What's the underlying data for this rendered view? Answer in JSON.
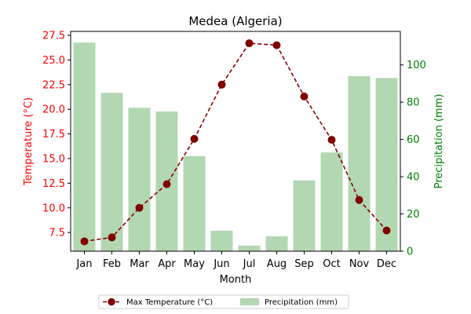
{
  "chart_data": {
    "type": "bar+line",
    "title": "Medea (Algeria)",
    "xlabel": "Month",
    "ylabel_left": "Temperature (°C)",
    "ylabel_right": "Precipitation (mm)",
    "categories": [
      "Jan",
      "Feb",
      "Mar",
      "Apr",
      "May",
      "Jun",
      "Jul",
      "Aug",
      "Sep",
      "Oct",
      "Nov",
      "Dec"
    ],
    "series": [
      {
        "name": "Max Temperature (°C)",
        "type": "line",
        "axis": "left",
        "values": [
          6.6,
          7.0,
          10.0,
          12.4,
          17.0,
          22.5,
          26.7,
          26.5,
          21.3,
          16.9,
          10.8,
          7.7
        ]
      },
      {
        "name": "Precipitation (mm)",
        "type": "bar",
        "axis": "right",
        "values": [
          112,
          85,
          77,
          75,
          51,
          11,
          3,
          8,
          38,
          53,
          94,
          93
        ]
      }
    ],
    "ylim_left": [
      5.6,
      27.9
    ],
    "yticks_left": [
      "7.5",
      "10.0",
      "12.5",
      "15.0",
      "17.5",
      "20.0",
      "22.5",
      "25.0",
      "27.5"
    ],
    "ylim_right": [
      0,
      118
    ],
    "yticks_right": [
      "0",
      "20",
      "40",
      "60",
      "80",
      "100"
    ],
    "grid": false,
    "legend_position": "bottom-center",
    "colors": {
      "line": "#8b0000",
      "line_marker": "#800000",
      "bar": "#b2d8b2",
      "left_axis": "#ff0000",
      "right_axis": "#008000",
      "text": "#000000"
    }
  }
}
